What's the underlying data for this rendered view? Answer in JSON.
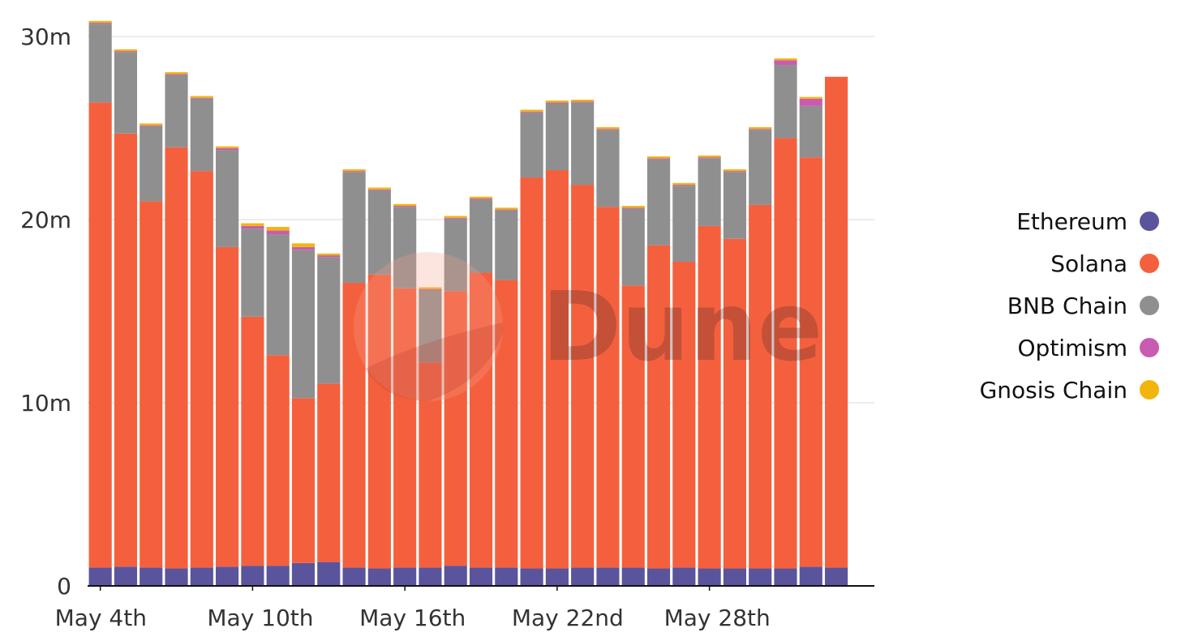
{
  "watermark": {
    "text": "Dune"
  },
  "chart_data": {
    "type": "bar",
    "stacked": true,
    "title": "",
    "xlabel": "",
    "ylabel": "",
    "ylim": [
      0,
      30000000
    ],
    "y_ticks": [
      {
        "value": 0,
        "label": "0"
      },
      {
        "value": 10000000,
        "label": "10m"
      },
      {
        "value": 20000000,
        "label": "20m"
      },
      {
        "value": 30000000,
        "label": "30m"
      }
    ],
    "x_tick_labels": [
      {
        "index": 0,
        "label": "May 4th"
      },
      {
        "index": 6,
        "label": "May 10th"
      },
      {
        "index": 12,
        "label": "May 16th"
      },
      {
        "index": 18,
        "label": "May 22nd"
      },
      {
        "index": 24,
        "label": "May 28th"
      }
    ],
    "grid": true,
    "legend_position": "right",
    "categories": [
      "May 4",
      "May 5",
      "May 6",
      "May 7",
      "May 8",
      "May 9",
      "May 10",
      "May 11",
      "May 12",
      "May 13",
      "May 14",
      "May 15",
      "May 16",
      "May 17",
      "May 18",
      "May 19",
      "May 20",
      "May 21",
      "May 22",
      "May 23",
      "May 24",
      "May 25",
      "May 26",
      "May 27",
      "May 28",
      "May 29",
      "May 30",
      "May 31",
      "Jun 1",
      "Jun 2",
      "Jun 3"
    ],
    "series": [
      {
        "name": "Ethereum",
        "color": "#5a549c",
        "values": [
          1000000,
          1050000,
          1000000,
          950000,
          1000000,
          1050000,
          1100000,
          1100000,
          1250000,
          1300000,
          1000000,
          950000,
          1000000,
          1000000,
          1100000,
          1000000,
          1000000,
          950000,
          950000,
          1000000,
          1000000,
          1000000,
          950000,
          1000000,
          950000,
          950000,
          950000,
          950000,
          1050000,
          1000000,
          0
        ]
      },
      {
        "name": "Solana",
        "color": "#f4603d",
        "values": [
          25400000,
          23650000,
          20000000,
          23000000,
          21650000,
          17450000,
          13600000,
          11500000,
          9000000,
          9750000,
          15550000,
          16050000,
          15250000,
          11200000,
          15000000,
          16100000,
          15700000,
          21350000,
          21750000,
          20900000,
          19700000,
          15400000,
          17650000,
          16700000,
          18700000,
          18000000,
          19850000,
          23500000,
          22350000,
          26800000,
          0
        ]
      },
      {
        "name": "BNB Chain",
        "color": "#8f8f8f",
        "values": [
          4300000,
          4450000,
          4100000,
          3950000,
          3950000,
          5300000,
          4800000,
          6600000,
          8100000,
          6900000,
          6050000,
          4600000,
          4450000,
          3950000,
          3950000,
          4000000,
          3800000,
          3550000,
          3650000,
          4500000,
          4200000,
          4200000,
          4700000,
          4150000,
          3700000,
          3650000,
          4100000,
          4000000,
          2800000,
          0,
          0
        ]
      },
      {
        "name": "Optimism",
        "color": "#c95bb3",
        "values": [
          50000,
          50000,
          50000,
          50000,
          50000,
          100000,
          150000,
          200000,
          150000,
          100000,
          50000,
          50000,
          50000,
          50000,
          50000,
          50000,
          50000,
          50000,
          50000,
          50000,
          50000,
          50000,
          50000,
          50000,
          50000,
          50000,
          50000,
          250000,
          400000,
          0,
          0
        ]
      },
      {
        "name": "Gnosis Chain",
        "color": "#f2b50c",
        "values": [
          100000,
          100000,
          100000,
          100000,
          100000,
          100000,
          150000,
          200000,
          200000,
          100000,
          100000,
          100000,
          100000,
          100000,
          100000,
          100000,
          100000,
          100000,
          100000,
          100000,
          100000,
          100000,
          100000,
          100000,
          100000,
          100000,
          100000,
          100000,
          100000,
          0,
          0
        ]
      }
    ]
  }
}
